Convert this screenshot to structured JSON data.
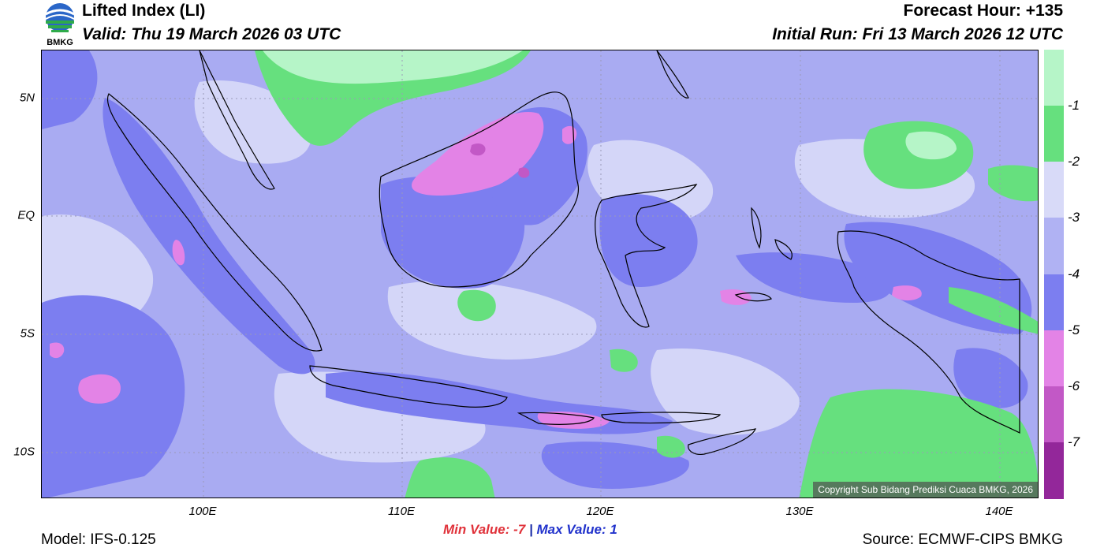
{
  "header": {
    "title": "Lifted Index (LI)",
    "valid": "Valid: Thu 19 March 2026 03 UTC",
    "forecast_hour": "Forecast Hour: +135",
    "initial_run": "Initial Run: Fri 13 March 2026 12 UTC",
    "logo_text": "BMKG"
  },
  "map": {
    "copyright": "Copyright Sub Bidang Prediksi Cuaca BMKG, 2026",
    "lat_labels": [
      "5N",
      "EQ",
      "5S",
      "10S"
    ],
    "lon_labels": [
      "100E",
      "110E",
      "120E",
      "130E",
      "140E"
    ]
  },
  "colorbar": {
    "labels": [
      "-1",
      "-2",
      "-3",
      "-4",
      "-5",
      "-6",
      "-7"
    ],
    "colors": [
      "#b6f5c8",
      "#66e07e",
      "#d8daf8",
      "#b0b2f3",
      "#7c7ef0",
      "#e383e6",
      "#c258c6",
      "#93279a"
    ]
  },
  "footer": {
    "min_label": "Min Value:",
    "min_value": "-7",
    "separator": "|",
    "max_label": "Max Value:",
    "max_value": "1",
    "model": "Model: IFS-0.125",
    "source": "Source: ECMWF-CIPS BMKG"
  }
}
